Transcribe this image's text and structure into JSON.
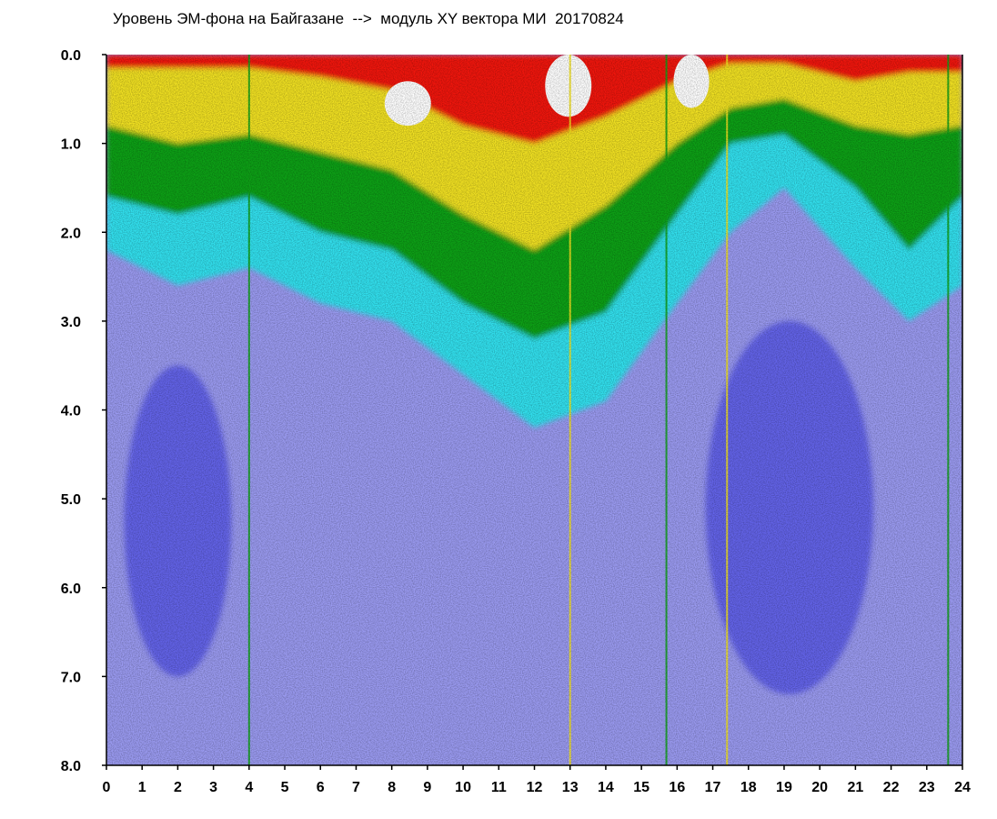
{
  "chart_data": {
    "type": "heatmap",
    "title": "Уровень ЭМ-фона на Байгазане  -->  модуль XY вектора МИ  20170824",
    "xlabel": "",
    "ylabel": "",
    "x_range": [
      0,
      24
    ],
    "y_range": [
      0,
      8
    ],
    "y_inverted": true,
    "x_ticks": [
      "0",
      "1",
      "2",
      "3",
      "4",
      "5",
      "6",
      "7",
      "8",
      "9",
      "10",
      "11",
      "12",
      "13",
      "14",
      "15",
      "16",
      "17",
      "18",
      "19",
      "20",
      "21",
      "22",
      "23",
      "24"
    ],
    "y_ticks": [
      "0.0",
      "1.0",
      "2.0",
      "3.0",
      "4.0",
      "5.0",
      "6.0",
      "7.0",
      "8.0"
    ],
    "colorscale": [
      "#2020e0",
      "#9a9af0",
      "#30e0ee",
      "#10a018",
      "#f0e020",
      "#f01808",
      "#ffffff"
    ],
    "level_by_hour": [
      {
        "x": 0,
        "cyan_to": 2.2,
        "green_to": 1.6,
        "yellow_to": 0.8,
        "red_to": 0.15
      },
      {
        "x": 2,
        "cyan_to": 2.6,
        "green_to": 1.8,
        "yellow_to": 1.0,
        "red_to": 0.15
      },
      {
        "x": 4,
        "cyan_to": 2.4,
        "green_to": 1.6,
        "yellow_to": 0.9,
        "red_to": 0.15
      },
      {
        "x": 6,
        "cyan_to": 2.8,
        "green_to": 2.0,
        "yellow_to": 1.1,
        "red_to": 0.25
      },
      {
        "x": 8,
        "cyan_to": 3.0,
        "green_to": 2.2,
        "yellow_to": 1.3,
        "red_to": 0.4
      },
      {
        "x": 10,
        "cyan_to": 3.6,
        "green_to": 2.8,
        "yellow_to": 1.8,
        "red_to": 0.8
      },
      {
        "x": 12,
        "cyan_to": 4.2,
        "green_to": 3.2,
        "yellow_to": 2.2,
        "red_to": 1.0
      },
      {
        "x": 14,
        "cyan_to": 3.9,
        "green_to": 2.9,
        "yellow_to": 1.7,
        "red_to": 0.7
      },
      {
        "x": 16,
        "cyan_to": 2.8,
        "green_to": 1.8,
        "yellow_to": 1.0,
        "red_to": 0.3
      },
      {
        "x": 17.5,
        "cyan_to": 2.0,
        "green_to": 1.0,
        "yellow_to": 0.6,
        "red_to": 0.1
      },
      {
        "x": 19,
        "cyan_to": 1.5,
        "green_to": 0.9,
        "yellow_to": 0.5,
        "red_to": 0.1
      },
      {
        "x": 21,
        "cyan_to": 2.4,
        "green_to": 1.5,
        "yellow_to": 0.8,
        "red_to": 0.3
      },
      {
        "x": 22.5,
        "cyan_to": 3.0,
        "green_to": 2.2,
        "yellow_to": 0.9,
        "red_to": 0.2
      },
      {
        "x": 24,
        "cyan_to": 2.6,
        "green_to": 1.6,
        "yellow_to": 0.8,
        "red_to": 0.2
      }
    ],
    "deep_blue_regions": [
      {
        "x": [
          0.5,
          3.5
        ],
        "y": [
          3.5,
          7.0
        ]
      },
      {
        "x": [
          16.8,
          21.5
        ],
        "y": [
          3.0,
          7.2
        ]
      }
    ],
    "saturated_regions": [
      {
        "x": [
          7.8,
          9.1
        ],
        "y": [
          0.3,
          0.8
        ]
      },
      {
        "x": [
          12.3,
          13.6
        ],
        "y": [
          0.0,
          0.7
        ]
      },
      {
        "x": [
          15.9,
          16.9
        ],
        "y": [
          0.0,
          0.6
        ]
      }
    ],
    "vertical_streaks": [
      {
        "x": 13.0,
        "color": "#f0e020"
      },
      {
        "x": 15.7,
        "color": "#10a018"
      },
      {
        "x": 17.4,
        "color": "#f0e020"
      },
      {
        "x": 23.6,
        "color": "#10a018"
      },
      {
        "x": 4.0,
        "color": "#10a018"
      }
    ]
  }
}
